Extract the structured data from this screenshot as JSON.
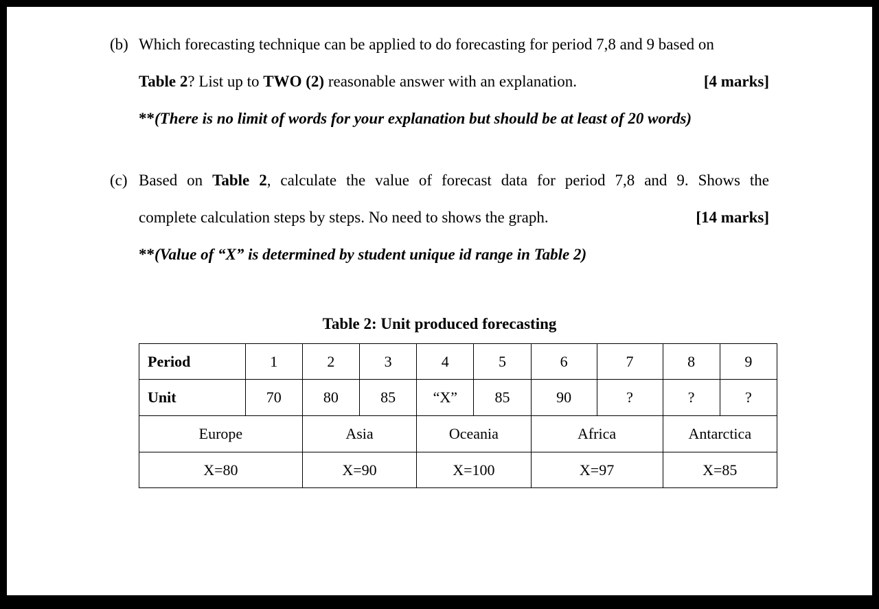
{
  "question_b": {
    "label": "(b)",
    "line1_before": "Which forecasting technique can be applied to do forecasting for period 7,8 and 9 based on",
    "line2_table": "Table 2",
    "line2_mid": "? List up to ",
    "line2_two": "TWO (2)",
    "line2_after": " reasonable answer with an explanation.",
    "marks": "[4 marks]",
    "note_prefix": "**",
    "note": "(There is no limit of words for your explanation but should be at least of 20 words)"
  },
  "question_c": {
    "label": "(c)",
    "line1_before": "Based on ",
    "line1_table": "Table 2",
    "line1_after": ", calculate the value of forecast data for period 7,8 and 9. Shows the",
    "line2": "complete calculation steps by steps. No need to shows the graph.",
    "marks": "[14 marks]",
    "note_prefix": "**",
    "note": "(Value of “X” is determined by student unique id range in Table 2)"
  },
  "table": {
    "caption": "Table 2: Unit produced forecasting",
    "row_period_label": "Period",
    "periods": [
      "1",
      "2",
      "3",
      "4",
      "5",
      "6",
      "7",
      "8",
      "9"
    ],
    "row_unit_label": "Unit",
    "units": [
      "70",
      "80",
      "85",
      "“X”",
      "85",
      "90",
      "?",
      "?",
      "?"
    ],
    "regions": [
      "Europe",
      "Asia",
      "Oceania",
      "Africa",
      "Antarctica"
    ],
    "xvals": [
      "X=80",
      "X=90",
      "X=100",
      "X=97",
      "X=85"
    ]
  },
  "colors": {
    "page_bg": "#ffffff",
    "outer_bg": "#000000",
    "text": "#000000",
    "border": "#000000"
  }
}
